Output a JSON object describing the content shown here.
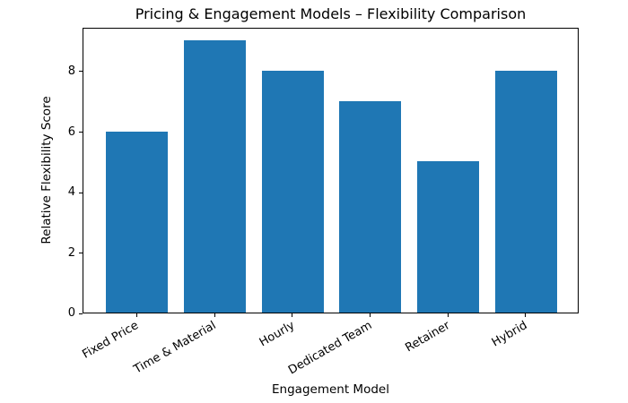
{
  "chart_data": {
    "type": "bar",
    "title": "Pricing & Engagement Models – Flexibility Comparison",
    "xlabel": "Engagement Model",
    "ylabel": "Relative Flexibility Score",
    "categories": [
      "Fixed Price",
      "Time & Material",
      "Hourly",
      "Dedicated Team",
      "Retainer",
      "Hybrid"
    ],
    "values": [
      6,
      9,
      8,
      7,
      5,
      8
    ],
    "yticks": [
      0,
      2,
      4,
      6,
      8
    ],
    "ylim": [
      0,
      9.45
    ],
    "bar_width_fraction": 0.8,
    "bar_color": "#1f77b4",
    "axis_color": "#000000",
    "background_color": "#ffffff",
    "grid": false,
    "legend": "none"
  }
}
